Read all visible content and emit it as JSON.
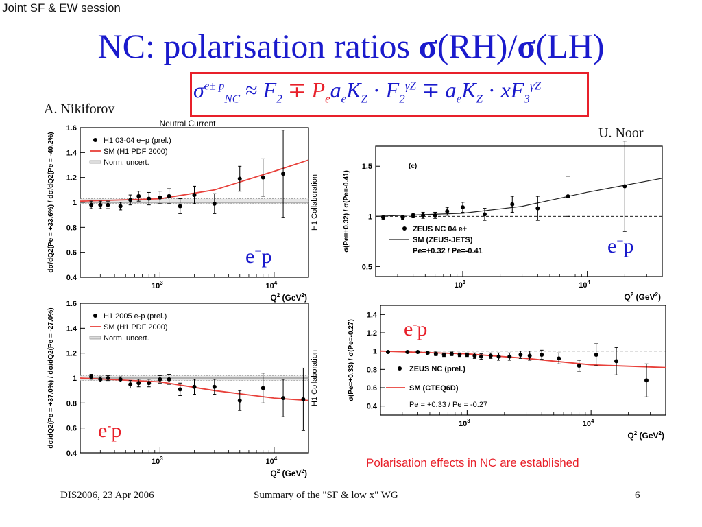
{
  "header": {
    "session": "Joint SF & EW session",
    "title_text": "NC: polarisation ratios ",
    "title_sigma": "σ",
    "title_rh": "(RH)/",
    "title_lh": "(LH)"
  },
  "formula": {
    "sigma": "σ",
    "sup": "e± p",
    "sub": "NC",
    "approx": "≈",
    "f": "F",
    "f_sub": "2",
    "mp1": "∓",
    "p": "P",
    "p_sub": "e",
    "a": "a",
    "a_sub": "e",
    "k": "K",
    "k_sub": "Z",
    "dot": "·",
    "f2": "F",
    "f2_sub": "2",
    "f2_sup": "γZ",
    "mp2": "∓",
    "a2": "a",
    "a2_sub": "e",
    "k2": "K",
    "k2_sub": "Z",
    "dot2": "·",
    "x": "x",
    "f3": "F",
    "f3_sub": "3",
    "f3_sup": "γZ"
  },
  "authors": {
    "left": "A. Nikiforov",
    "right": "U. Noor"
  },
  "labels": {
    "tl_e": "e",
    "tl_sup": "+",
    "tl_p": "p",
    "tr_e": "e",
    "tr_sup": "+",
    "tr_p": "p",
    "bl_e": "e",
    "bl_sup": "-",
    "bl_p": "p",
    "br_e": "e",
    "br_sup": "-",
    "br_p": "p"
  },
  "conclusion": "Polarisation effects in NC are established",
  "footer": {
    "left": "DIS2006, 23 Apr 2006",
    "middle": "Summary of  the \"SF & low x\" WG",
    "page": "6"
  },
  "chart_data": [
    {
      "id": "h1_ep_plus",
      "type": "scatter",
      "title": "Neutral Current",
      "xlabel": "Q2 (GeV2)",
      "ylabel": "dσ/dQ2(Pe = +33.6%) / dσ/dQ2(Pe = -40.2%)",
      "xscale": "log",
      "xlim": [
        200,
        20000
      ],
      "ylim": [
        0.4,
        1.6
      ],
      "yticks": [
        "0.4",
        "0.6",
        "0.8",
        "1",
        "1.2",
        "1.4",
        "1.6"
      ],
      "xticks": [
        "10^3",
        "10^4"
      ],
      "side_label": "H1 Collaboration",
      "legend": [
        "H1 03-04 e+p (prel.)",
        "SM (H1 PDF 2000)",
        "Norm. uncert."
      ],
      "points": [
        {
          "x": 250,
          "y": 0.98,
          "err": 0.03
        },
        {
          "x": 300,
          "y": 0.98,
          "err": 0.03
        },
        {
          "x": 350,
          "y": 0.98,
          "err": 0.03
        },
        {
          "x": 450,
          "y": 0.97,
          "err": 0.03
        },
        {
          "x": 550,
          "y": 1.02,
          "err": 0.04
        },
        {
          "x": 650,
          "y": 1.05,
          "err": 0.04
        },
        {
          "x": 800,
          "y": 1.03,
          "err": 0.05
        },
        {
          "x": 1000,
          "y": 1.04,
          "err": 0.05
        },
        {
          "x": 1200,
          "y": 1.05,
          "err": 0.06
        },
        {
          "x": 1500,
          "y": 0.97,
          "err": 0.06
        },
        {
          "x": 2000,
          "y": 1.06,
          "err": 0.07
        },
        {
          "x": 3000,
          "y": 0.99,
          "err": 0.08
        },
        {
          "x": 5000,
          "y": 1.19,
          "err": 0.1
        },
        {
          "x": 8000,
          "y": 1.2,
          "err": 0.15
        },
        {
          "x": 12000,
          "y": 1.23,
          "err": 0.35
        }
      ],
      "sm_curve": [
        [
          200,
          1.01
        ],
        [
          1000,
          1.03
        ],
        [
          3000,
          1.1
        ],
        [
          10000,
          1.25
        ],
        [
          20000,
          1.34
        ]
      ],
      "norm_band": [
        0.99,
        1.03
      ]
    },
    {
      "id": "zeus_ep_plus",
      "type": "scatter",
      "title": "(c)",
      "xlabel": "Q2 (GeV2)",
      "ylabel": "σ(Pe=+0.32) / σ(Pe=-0.41)",
      "xscale": "log",
      "xlim": [
        200,
        40000
      ],
      "ylim": [
        0.4,
        1.7
      ],
      "yticks": [
        "0.5",
        "1",
        "1.5"
      ],
      "xticks": [
        "10^3",
        "10^4"
      ],
      "legend": [
        "ZEUS NC 04 e+",
        "SM (ZEUS-JETS)",
        "Pe=+0.32 / Pe=-0.41"
      ],
      "points": [
        {
          "x": 230,
          "y": 0.99,
          "err": 0.02
        },
        {
          "x": 330,
          "y": 0.99,
          "err": 0.02
        },
        {
          "x": 400,
          "y": 1.01,
          "err": 0.02
        },
        {
          "x": 480,
          "y": 1.01,
          "err": 0.03
        },
        {
          "x": 600,
          "y": 1.01,
          "err": 0.03
        },
        {
          "x": 750,
          "y": 1.05,
          "err": 0.04
        },
        {
          "x": 1000,
          "y": 1.09,
          "err": 0.05
        },
        {
          "x": 1500,
          "y": 1.02,
          "err": 0.06
        },
        {
          "x": 2500,
          "y": 1.12,
          "err": 0.08
        },
        {
          "x": 4000,
          "y": 1.08,
          "err": 0.12
        },
        {
          "x": 7000,
          "y": 1.2,
          "err": 0.2
        },
        {
          "x": 20000,
          "y": 1.3,
          "err": 0.45
        }
      ],
      "sm_curve": [
        [
          200,
          1.0
        ],
        [
          1000,
          1.03
        ],
        [
          3000,
          1.1
        ],
        [
          10000,
          1.24
        ],
        [
          40000,
          1.38
        ]
      ]
    },
    {
      "id": "h1_ep_minus",
      "type": "scatter",
      "xlabel": "Q2 (GeV2)",
      "ylabel": "dσ/dQ2(Pe = +37.0%) / dσ/dQ2(Pe = -27.0%)",
      "xscale": "log",
      "xlim": [
        200,
        20000
      ],
      "ylim": [
        0.4,
        1.6
      ],
      "yticks": [
        "0.4",
        "0.6",
        "0.8",
        "1",
        "1.2",
        "1.4",
        "1.6"
      ],
      "xticks": [
        "10^3",
        "10^4"
      ],
      "side_label": "H1 Collaboration",
      "legend": [
        "H1 2005 e-p (prel.)",
        "SM (H1 PDF 2000)",
        "Norm. uncert."
      ],
      "points": [
        {
          "x": 250,
          "y": 1.01,
          "err": 0.02
        },
        {
          "x": 300,
          "y": 0.99,
          "err": 0.02
        },
        {
          "x": 350,
          "y": 1.0,
          "err": 0.02
        },
        {
          "x": 450,
          "y": 0.99,
          "err": 0.02
        },
        {
          "x": 550,
          "y": 0.95,
          "err": 0.03
        },
        {
          "x": 650,
          "y": 0.96,
          "err": 0.03
        },
        {
          "x": 800,
          "y": 0.96,
          "err": 0.03
        },
        {
          "x": 1000,
          "y": 0.99,
          "err": 0.03
        },
        {
          "x": 1200,
          "y": 0.99,
          "err": 0.04
        },
        {
          "x": 1500,
          "y": 0.91,
          "err": 0.05
        },
        {
          "x": 2000,
          "y": 0.93,
          "err": 0.06
        },
        {
          "x": 3000,
          "y": 0.93,
          "err": 0.06
        },
        {
          "x": 5000,
          "y": 0.82,
          "err": 0.08
        },
        {
          "x": 8000,
          "y": 0.92,
          "err": 0.12
        },
        {
          "x": 12000,
          "y": 0.84,
          "err": 0.15
        },
        {
          "x": 18000,
          "y": 0.83,
          "err": 0.25
        }
      ],
      "sm_curve": [
        [
          200,
          1.0
        ],
        [
          1000,
          0.97
        ],
        [
          3000,
          0.9
        ],
        [
          10000,
          0.84
        ],
        [
          20000,
          0.82
        ]
      ],
      "norm_band": [
        0.98,
        1.02
      ]
    },
    {
      "id": "zeus_ep_minus",
      "type": "scatter",
      "xlabel": "Q2 (GeV2)",
      "ylabel": "σ(Pe=+0.33) / σ(Pe=-0.27)",
      "xscale": "log",
      "xlim": [
        200,
        40000
      ],
      "ylim": [
        0.3,
        1.5
      ],
      "yticks": [
        "0.4",
        "0.6",
        "0.8",
        "1",
        "1.2",
        "1.4"
      ],
      "xticks": [
        "10^3",
        "10^4"
      ],
      "legend": [
        "ZEUS NC (prel.)",
        "SM (CTEQ6D)",
        "Pe = +0.33 / Pe = -0.27"
      ],
      "points": [
        {
          "x": 230,
          "y": 0.99,
          "err": 0.01
        },
        {
          "x": 330,
          "y": 0.99,
          "err": 0.01
        },
        {
          "x": 400,
          "y": 0.99,
          "err": 0.01
        },
        {
          "x": 480,
          "y": 0.98,
          "err": 0.01
        },
        {
          "x": 560,
          "y": 0.97,
          "err": 0.02
        },
        {
          "x": 650,
          "y": 0.96,
          "err": 0.02
        },
        {
          "x": 750,
          "y": 0.97,
          "err": 0.02
        },
        {
          "x": 870,
          "y": 0.96,
          "err": 0.02
        },
        {
          "x": 1000,
          "y": 0.96,
          "err": 0.02
        },
        {
          "x": 1150,
          "y": 0.95,
          "err": 0.03
        },
        {
          "x": 1300,
          "y": 0.94,
          "err": 0.03
        },
        {
          "x": 1550,
          "y": 0.95,
          "err": 0.03
        },
        {
          "x": 1800,
          "y": 0.94,
          "err": 0.04
        },
        {
          "x": 2200,
          "y": 0.94,
          "err": 0.04
        },
        {
          "x": 2700,
          "y": 0.96,
          "err": 0.04
        },
        {
          "x": 3200,
          "y": 0.95,
          "err": 0.05
        },
        {
          "x": 4000,
          "y": 0.96,
          "err": 0.05
        },
        {
          "x": 5500,
          "y": 0.92,
          "err": 0.06
        },
        {
          "x": 8000,
          "y": 0.84,
          "err": 0.06
        },
        {
          "x": 11000,
          "y": 0.96,
          "err": 0.12
        },
        {
          "x": 16000,
          "y": 0.89,
          "err": 0.15
        },
        {
          "x": 28000,
          "y": 0.68,
          "err": 0.18
        }
      ],
      "sm_curve": [
        [
          200,
          1.0
        ],
        [
          1000,
          0.97
        ],
        [
          3000,
          0.92
        ],
        [
          10000,
          0.85
        ],
        [
          40000,
          0.82
        ]
      ],
      "ref_line": 1.0
    }
  ]
}
